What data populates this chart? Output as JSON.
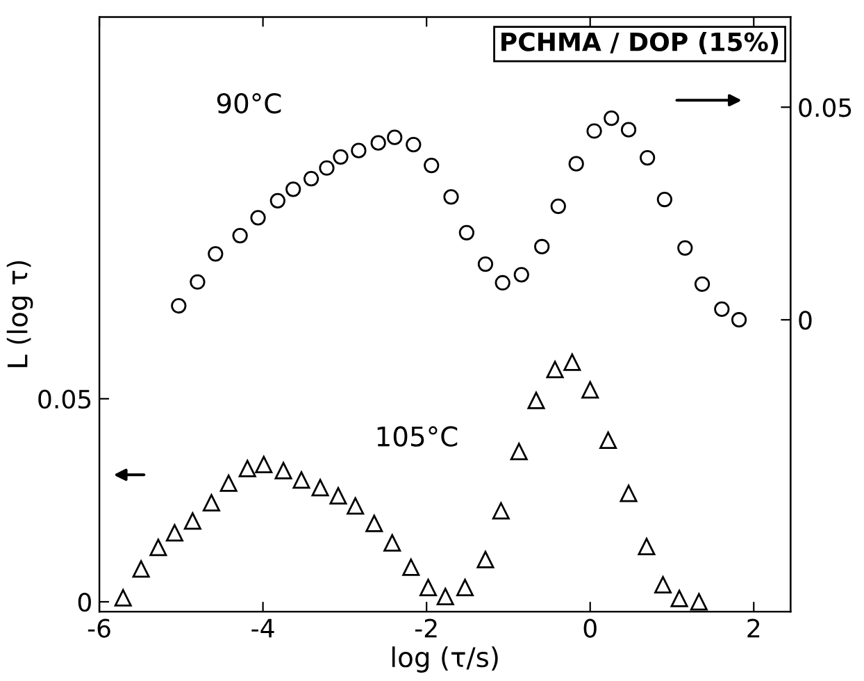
{
  "chart_data": {
    "type": "scatter",
    "title": "PCHMA / DOP (15%)",
    "xlabel": "log (τ/s)",
    "ylabel": "L (log τ)",
    "xlim": [
      -6,
      2.45
    ],
    "xticks": [
      -6,
      -4,
      -2,
      0,
      2
    ],
    "ylim": [
      -0.0024,
      0.144
    ],
    "yticks": [
      0,
      0.05
    ],
    "y2lim": [
      -0.0686,
      0.0712
    ],
    "y2ticks": [
      0,
      0.05
    ],
    "grid": false,
    "legend": false,
    "series": [
      {
        "name": "90°C",
        "axis": "y2",
        "marker": "circle",
        "color": "#000000",
        "x": [
          -5.03,
          -4.8,
          -4.58,
          -4.28,
          -4.06,
          -3.82,
          -3.63,
          -3.41,
          -3.22,
          -3.05,
          -2.83,
          -2.59,
          -2.39,
          -2.16,
          -1.94,
          -1.7,
          -1.51,
          -1.28,
          -1.07,
          -0.84,
          -0.59,
          -0.39,
          -0.17,
          0.05,
          0.26,
          0.47,
          0.7,
          0.91,
          1.16,
          1.37,
          1.61,
          1.82
        ],
        "values": [
          0.0033,
          0.0089,
          0.0155,
          0.0198,
          0.024,
          0.028,
          0.0307,
          0.0332,
          0.0357,
          0.0383,
          0.0398,
          0.0416,
          0.0429,
          0.0412,
          0.0363,
          0.0289,
          0.0205,
          0.0131,
          0.0087,
          0.0106,
          0.0172,
          0.0267,
          0.0367,
          0.0444,
          0.0474,
          0.0447,
          0.0381,
          0.0283,
          0.0169,
          0.0084,
          0.0025,
          0.0
        ]
      },
      {
        "name": "105°C",
        "axis": "y",
        "marker": "triangle",
        "color": "#000000",
        "x": [
          -5.71,
          -5.49,
          -5.28,
          -5.08,
          -4.86,
          -4.63,
          -4.42,
          -4.19,
          -3.99,
          -3.75,
          -3.53,
          -3.3,
          -3.08,
          -2.87,
          -2.64,
          -2.42,
          -2.19,
          -1.98,
          -1.77,
          -1.53,
          -1.28,
          -1.09,
          -0.87,
          -0.66,
          -0.43,
          -0.22,
          0.0,
          0.22,
          0.47,
          0.69,
          0.89,
          1.09,
          1.33
        ],
        "values": [
          0.001,
          0.0081,
          0.0134,
          0.017,
          0.0199,
          0.0244,
          0.0292,
          0.0328,
          0.0338,
          0.0323,
          0.03,
          0.0281,
          0.0261,
          0.0236,
          0.0193,
          0.0145,
          0.0085,
          0.0035,
          0.0013,
          0.0035,
          0.0104,
          0.0224,
          0.037,
          0.0496,
          0.0572,
          0.059,
          0.0522,
          0.0398,
          0.0267,
          0.0136,
          0.0042,
          0.0008,
          0.0
        ]
      }
    ]
  }
}
